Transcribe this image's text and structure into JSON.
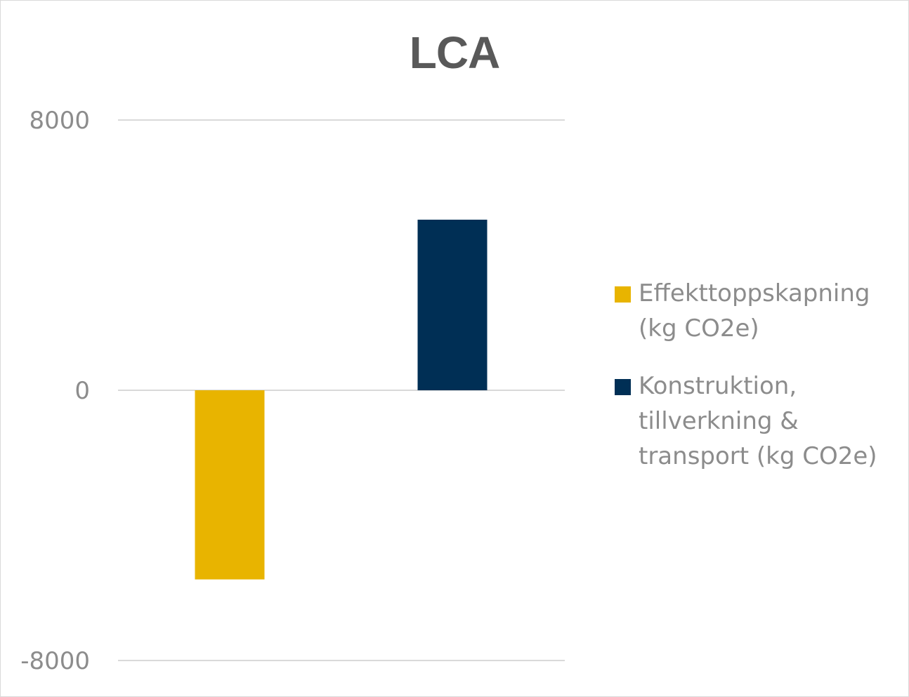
{
  "chart_data": {
    "type": "bar",
    "title": "LCA",
    "categories": [
      ""
    ],
    "series": [
      {
        "name": "Effekttoppskapning (kg CO2e)",
        "values": [
          -5600
        ],
        "color": "#e8b400"
      },
      {
        "name": "Konstruktion, tillverkning & transport (kg CO2e)",
        "values": [
          5050
        ],
        "color": "#002f55"
      }
    ],
    "ylim": [
      -8000,
      8000
    ],
    "yticks": [
      8000,
      0,
      -8000
    ],
    "ytick_labels": [
      "8000",
      "0",
      "-8000"
    ],
    "xlabel": "",
    "ylabel": "",
    "grid": true,
    "legend_position": "right"
  }
}
